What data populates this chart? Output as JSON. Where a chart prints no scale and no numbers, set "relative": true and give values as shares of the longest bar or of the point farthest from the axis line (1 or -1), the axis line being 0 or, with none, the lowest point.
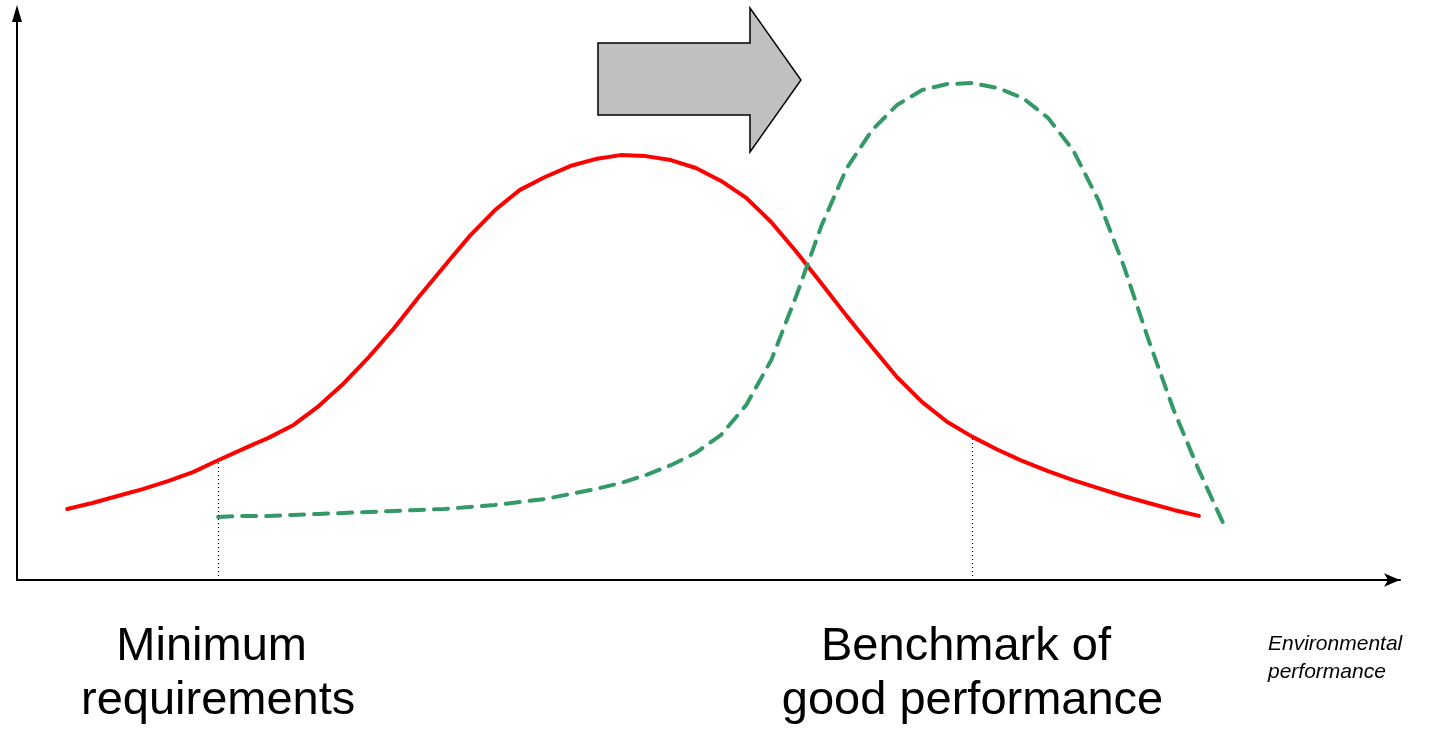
{
  "chart_data": {
    "type": "line",
    "relative": true,
    "xlabel": "Environmental performance",
    "categories": [
      null,
      null,
      null,
      null,
      null,
      null,
      null,
      null,
      "Minimum requirements",
      null,
      null,
      null,
      null,
      null,
      null,
      null,
      null,
      null,
      null,
      null,
      null,
      null,
      null,
      null,
      null,
      null,
      null,
      null,
      null,
      null,
      null,
      null,
      null,
      null,
      null,
      null,
      null,
      null,
      "Benchmark of good performance",
      null,
      null,
      null,
      null,
      null,
      null,
      null,
      null,
      null,
      null,
      null,
      null,
      null,
      null,
      null,
      null,
      null
    ],
    "series": [
      {
        "color": "#ff0000",
        "line_style": "solid",
        "values": [
          null,
          null,
          0.143,
          0.155,
          0.169,
          0.183,
          0.199,
          0.217,
          0.241,
          0.264,
          0.286,
          0.312,
          0.35,
          0.396,
          0.449,
          0.507,
          0.571,
          0.632,
          0.692,
          0.744,
          0.785,
          0.811,
          0.833,
          0.847,
          0.855,
          0.853,
          0.845,
          0.829,
          0.803,
          0.769,
          0.72,
          0.66,
          0.596,
          0.531,
          0.469,
          0.408,
          0.358,
          0.318,
          0.288,
          0.262,
          0.239,
          0.219,
          0.201,
          0.185,
          0.169,
          0.155,
          0.141,
          0.129,
          null,
          null,
          null,
          null,
          null,
          null,
          null,
          null
        ]
      },
      {
        "color": "#339966",
        "line_style": "dashed",
        "values": [
          null,
          null,
          null,
          null,
          null,
          null,
          null,
          null,
          0.127,
          0.129,
          0.129,
          0.131,
          0.133,
          0.135,
          0.137,
          0.139,
          0.141,
          0.143,
          0.147,
          0.151,
          0.157,
          0.163,
          0.173,
          0.183,
          0.195,
          0.211,
          0.231,
          0.256,
          0.292,
          0.352,
          0.443,
          0.573,
          0.714,
          0.829,
          0.905,
          0.956,
          0.986,
          0.998,
          1.0,
          0.99,
          0.97,
          0.93,
          0.865,
          0.765,
          0.634,
          0.483,
          0.342,
          0.221,
          0.111,
          null,
          null,
          null,
          null,
          null,
          null,
          null
        ]
      }
    ],
    "ref_lines": [
      {
        "axis": "x",
        "value": "Minimum requirements",
        "line_style": "dotted",
        "color": "#000000"
      },
      {
        "axis": "x",
        "value": "Benchmark of good performance",
        "line_style": "dotted",
        "color": "#000000"
      }
    ],
    "marker": "none",
    "grid": false
  }
}
